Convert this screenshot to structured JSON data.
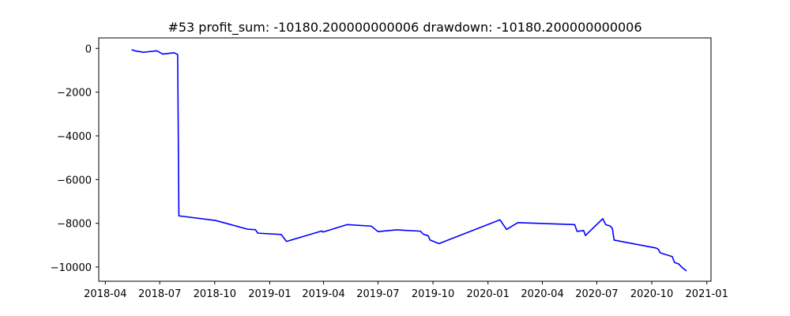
{
  "chart_data": {
    "type": "line",
    "title": "#53   profit_sum: -10180.200000000006 drawdown: -10180.200000000006",
    "xlabel": "",
    "ylabel": "",
    "x_axis": {
      "type": "date",
      "range": [
        "2018-03-21",
        "2021-01-08"
      ],
      "ticks": [
        "2018-04",
        "2018-07",
        "2018-10",
        "2019-01",
        "2019-04",
        "2019-07",
        "2019-10",
        "2020-01",
        "2020-04",
        "2020-07",
        "2020-10",
        "2021-01"
      ]
    },
    "y_axis": {
      "range": [
        -10650,
        480
      ],
      "ticks": [
        0,
        -2000,
        -4000,
        -6000,
        -8000,
        -10000
      ],
      "tick_labels": [
        "0",
        "−2000",
        "−4000",
        "−6000",
        "−8000",
        "−10000"
      ]
    },
    "grid": false,
    "legend": "none",
    "series": [
      {
        "color": "#0000ff",
        "points": [
          [
            "2018-05-15",
            -60
          ],
          [
            "2018-05-22",
            -120
          ],
          [
            "2018-05-29",
            -150
          ],
          [
            "2018-06-01",
            -160
          ],
          [
            "2018-06-03",
            -180
          ],
          [
            "2018-06-26",
            -110
          ],
          [
            "2018-07-06",
            -260
          ],
          [
            "2018-07-25",
            -200
          ],
          [
            "2018-07-31",
            -280
          ],
          [
            "2018-08-02",
            -7660
          ],
          [
            "2018-10-02",
            -7870
          ],
          [
            "2018-10-20",
            -8000
          ],
          [
            "2018-11-25",
            -8270
          ],
          [
            "2018-12-08",
            -8290
          ],
          [
            "2018-12-12",
            -8450
          ],
          [
            "2019-01-20",
            -8510
          ],
          [
            "2019-01-29",
            -8830
          ],
          [
            "2019-03-29",
            -8350
          ],
          [
            "2019-03-31",
            -8400
          ],
          [
            "2019-05-10",
            -8060
          ],
          [
            "2019-06-20",
            -8130
          ],
          [
            "2019-07-01",
            -8380
          ],
          [
            "2019-08-01",
            -8300
          ],
          [
            "2019-09-10",
            -8360
          ],
          [
            "2019-09-15",
            -8500
          ],
          [
            "2019-09-23",
            -8570
          ],
          [
            "2019-09-26",
            -8760
          ],
          [
            "2019-10-11",
            -8930
          ],
          [
            "2020-01-21",
            -7840
          ],
          [
            "2020-02-01",
            -8280
          ],
          [
            "2020-02-20",
            -7970
          ],
          [
            "2020-05-25",
            -8060
          ],
          [
            "2020-05-29",
            -8370
          ],
          [
            "2020-06-09",
            -8330
          ],
          [
            "2020-06-12",
            -8560
          ],
          [
            "2020-06-16",
            -8450
          ],
          [
            "2020-07-11",
            -7790
          ],
          [
            "2020-07-16",
            -8060
          ],
          [
            "2020-07-23",
            -8120
          ],
          [
            "2020-07-27",
            -8230
          ],
          [
            "2020-07-30",
            -8770
          ],
          [
            "2020-10-08",
            -9130
          ],
          [
            "2020-10-12",
            -9190
          ],
          [
            "2020-10-15",
            -9350
          ],
          [
            "2020-11-04",
            -9520
          ],
          [
            "2020-11-08",
            -9790
          ],
          [
            "2020-11-15",
            -9860
          ],
          [
            "2020-11-21",
            -10030
          ],
          [
            "2020-11-28",
            -10180
          ]
        ]
      }
    ]
  }
}
